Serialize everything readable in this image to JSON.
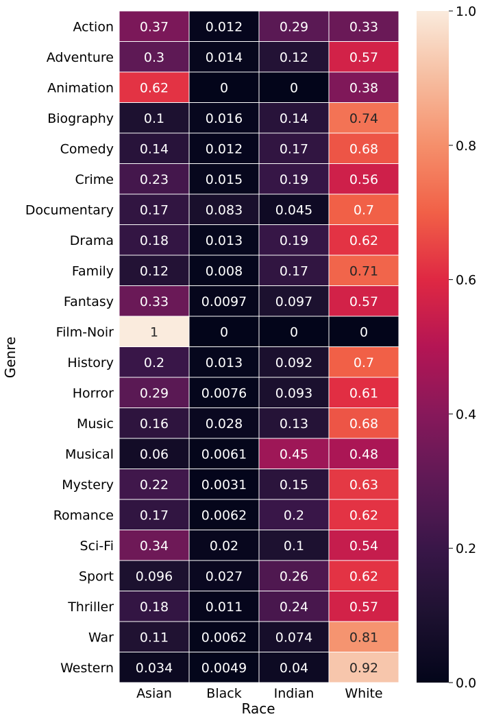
{
  "chart_data": {
    "type": "heatmap",
    "title": "",
    "xlabel": "Race",
    "ylabel": "Genre",
    "x": [
      "Asian",
      "Black",
      "Indian",
      "White"
    ],
    "y": [
      "Action",
      "Adventure",
      "Animation",
      "Biography",
      "Comedy",
      "Crime",
      "Documentary",
      "Drama",
      "Family",
      "Fantasy",
      "Film-Noir",
      "History",
      "Horror",
      "Music",
      "Musical",
      "Mystery",
      "Romance",
      "Sci-Fi",
      "Sport",
      "Thriller",
      "War",
      "Western"
    ],
    "values": [
      [
        0.37,
        0.012,
        0.29,
        0.33
      ],
      [
        0.3,
        0.014,
        0.12,
        0.57
      ],
      [
        0.62,
        0,
        0,
        0.38
      ],
      [
        0.1,
        0.016,
        0.14,
        0.74
      ],
      [
        0.14,
        0.012,
        0.17,
        0.68
      ],
      [
        0.23,
        0.015,
        0.19,
        0.56
      ],
      [
        0.17,
        0.083,
        0.045,
        0.7
      ],
      [
        0.18,
        0.013,
        0.19,
        0.62
      ],
      [
        0.12,
        0.008,
        0.17,
        0.71
      ],
      [
        0.33,
        0.0097,
        0.097,
        0.57
      ],
      [
        1,
        0,
        0,
        0
      ],
      [
        0.2,
        0.013,
        0.092,
        0.7
      ],
      [
        0.29,
        0.0076,
        0.093,
        0.61
      ],
      [
        0.16,
        0.028,
        0.13,
        0.68
      ],
      [
        0.06,
        0.0061,
        0.45,
        0.48
      ],
      [
        0.22,
        0.0031,
        0.15,
        0.63
      ],
      [
        0.17,
        0.0062,
        0.2,
        0.62
      ],
      [
        0.34,
        0.02,
        0.1,
        0.54
      ],
      [
        0.096,
        0.027,
        0.26,
        0.62
      ],
      [
        0.18,
        0.011,
        0.24,
        0.57
      ],
      [
        0.11,
        0.0062,
        0.074,
        0.81
      ],
      [
        0.034,
        0.0049,
        0.04,
        0.92
      ]
    ],
    "colorbar": {
      "range": [
        0,
        1
      ],
      "ticks": [
        "0.0",
        "0.2",
        "0.4",
        "0.6",
        "0.8",
        "1.0"
      ],
      "colormap": "rocket"
    },
    "grid": false,
    "legend": "right (colorbar)"
  }
}
